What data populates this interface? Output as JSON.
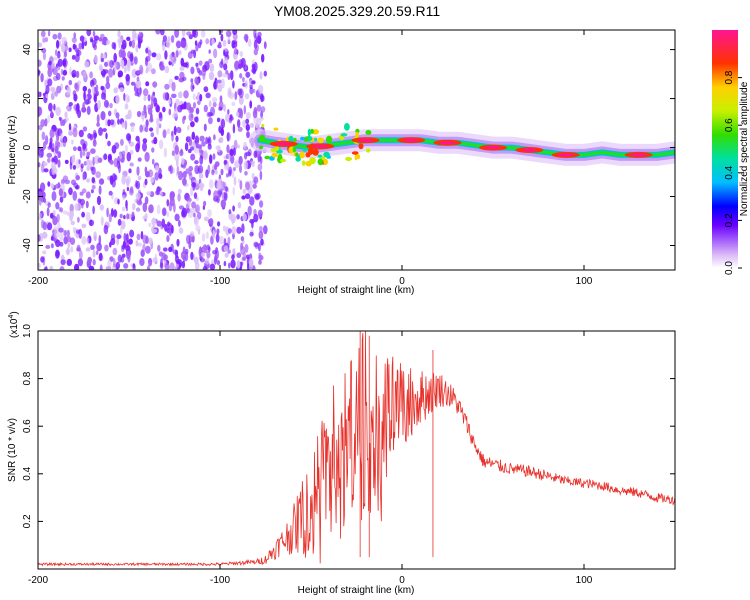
{
  "title": "YM08.2025.329.20.59.R11",
  "chart_data": [
    {
      "type": "heatmap",
      "name": "spectrogram",
      "xlabel": "Height of straight line (km)",
      "ylabel": "Frequency (Hz)",
      "xlim": [
        -200,
        150
      ],
      "ylim": [
        -50,
        48
      ],
      "xticks": [
        -200,
        -100,
        0,
        100
      ],
      "xtick_labels": [
        "-200",
        "-100",
        "0",
        "100"
      ],
      "yticks": [
        -40,
        -20,
        0,
        20,
        40
      ],
      "ytick_labels": [
        "-40",
        "-20",
        "0",
        "20",
        "40"
      ],
      "colorbar": {
        "label": "Normalized spectral amplitude",
        "range": [
          0.0,
          1.0
        ],
        "ticks": [
          0.0,
          0.2,
          0.4,
          0.6,
          0.8
        ],
        "tick_labels": [
          "0.0",
          "0.2",
          "0.4",
          "0.6",
          "0.8"
        ]
      },
      "noise_region": {
        "x_from": -200,
        "x_to": -75,
        "amplitude_max": 0.15
      },
      "ridge": {
        "x": [
          -78,
          -70,
          -60,
          -50,
          -40,
          -30,
          -20,
          -10,
          0,
          10,
          20,
          30,
          40,
          50,
          60,
          70,
          80,
          90,
          100,
          110,
          120,
          130,
          140,
          150
        ],
        "y": [
          3,
          2,
          1,
          0,
          1,
          2,
          3,
          3,
          3,
          3,
          2,
          2,
          1,
          0,
          0,
          -1,
          -2,
          -3,
          -3,
          -2,
          -3,
          -3,
          -3,
          -2
        ],
        "peak_x": [
          -65,
          -45,
          -20,
          5,
          25,
          50,
          70,
          90,
          130
        ]
      }
    },
    {
      "type": "line",
      "name": "snr",
      "xlabel": "Height of straight line (km)",
      "ylabel": "SNR (10 * v/v)",
      "y_scale_label": "(x10",
      "y_scale_exp": "4",
      "y_scale_close": ")",
      "xlim": [
        -200,
        150
      ],
      "ylim": [
        0,
        1.0
      ],
      "xticks": [
        -200,
        -100,
        0,
        100
      ],
      "xtick_labels": [
        "-200",
        "-100",
        "0",
        "100"
      ],
      "yticks": [
        0.2,
        0.4,
        0.6,
        0.8,
        1.0
      ],
      "ytick_labels": [
        "0.2",
        "0.4",
        "0.6",
        "0.8",
        "1.0"
      ],
      "color": "#e8302a",
      "series": [
        {
          "name": "SNR",
          "x": [
            -200,
            -180,
            -160,
            -140,
            -120,
            -100,
            -90,
            -80,
            -75,
            -70,
            -65,
            -60,
            -55,
            -50,
            -45,
            -40,
            -35,
            -30,
            -25,
            -20,
            -15,
            -10,
            -5,
            0,
            5,
            10,
            15,
            20,
            25,
            30,
            35,
            40,
            45,
            50,
            60,
            70,
            80,
            90,
            100,
            110,
            120,
            130,
            140,
            150
          ],
          "values": [
            0.02,
            0.02,
            0.02,
            0.02,
            0.02,
            0.02,
            0.025,
            0.03,
            0.04,
            0.08,
            0.12,
            0.16,
            0.22,
            0.28,
            0.35,
            0.4,
            0.46,
            0.52,
            0.55,
            0.58,
            0.56,
            0.58,
            0.64,
            0.68,
            0.7,
            0.72,
            0.74,
            0.76,
            0.74,
            0.7,
            0.62,
            0.52,
            0.45,
            0.44,
            0.42,
            0.41,
            0.39,
            0.37,
            0.36,
            0.35,
            0.33,
            0.32,
            0.3,
            0.29
          ],
          "spread": [
            0.005,
            0.005,
            0.005,
            0.005,
            0.005,
            0.006,
            0.008,
            0.01,
            0.02,
            0.04,
            0.06,
            0.1,
            0.16,
            0.22,
            0.28,
            0.32,
            0.38,
            0.4,
            0.42,
            0.4,
            0.35,
            0.3,
            0.22,
            0.18,
            0.15,
            0.12,
            0.1,
            0.08,
            0.06,
            0.05,
            0.04,
            0.03,
            0.03,
            0.03,
            0.025,
            0.025,
            0.025,
            0.02,
            0.02,
            0.02,
            0.02,
            0.02,
            0.02,
            0.02
          ],
          "peaks": [
            {
              "x": -23,
              "value": 1.0
            },
            {
              "x": -18,
              "value": 0.98
            },
            {
              "x": 17,
              "value": 0.92
            }
          ]
        }
      ]
    }
  ]
}
